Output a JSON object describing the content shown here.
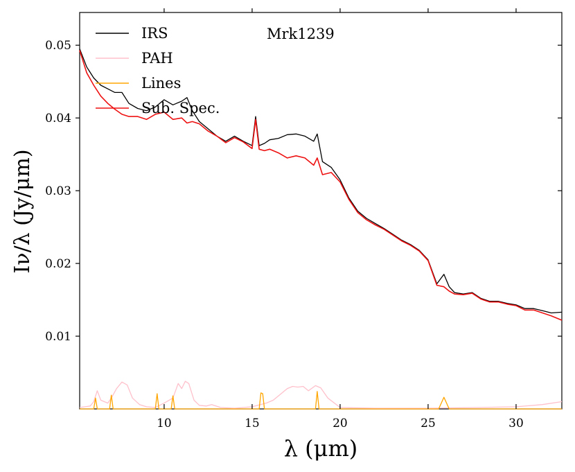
{
  "chart_data": {
    "type": "line",
    "title": "Mrk1239",
    "xlabel": "λ (μm)",
    "ylabel": "Iν/λ (Jy/μm)",
    "xlim": [
      5.2,
      32.6
    ],
    "ylim": [
      0.0,
      0.0545
    ],
    "xticks": [
      10,
      15,
      20,
      25,
      30
    ],
    "xtick_labels": [
      "10",
      "15",
      "20",
      "25",
      "30"
    ],
    "yticks": [
      0.01,
      0.02,
      0.03,
      0.04,
      0.05
    ],
    "ytick_labels": [
      "0.01",
      "0.02",
      "0.03",
      "0.04",
      "0.05"
    ],
    "legend_position": "top-left",
    "grid": false,
    "series": [
      {
        "name": "IRS",
        "color": "#000000",
        "x": [
          5.2,
          5.6,
          6.0,
          6.4,
          6.8,
          7.2,
          7.6,
          8.0,
          8.5,
          9.0,
          9.5,
          10.0,
          10.5,
          11.0,
          11.3,
          11.6,
          12.0,
          12.5,
          13.0,
          13.5,
          14.0,
          14.5,
          15.0,
          15.2,
          15.4,
          15.7,
          16.0,
          16.5,
          17.0,
          17.5,
          18.0,
          18.5,
          18.7,
          19.0,
          19.5,
          20.0,
          20.5,
          21.0,
          21.5,
          22.0,
          22.5,
          23.0,
          23.5,
          24.0,
          24.5,
          25.0,
          25.5,
          25.9,
          26.2,
          26.5,
          27.0,
          27.5,
          28.0,
          28.5,
          29.0,
          29.5,
          30.0,
          30.5,
          31.0,
          31.5,
          32.0,
          32.6
        ],
        "values": [
          0.0495,
          0.047,
          0.0455,
          0.0445,
          0.044,
          0.0435,
          0.0435,
          0.042,
          0.0413,
          0.041,
          0.0415,
          0.0425,
          0.0418,
          0.0423,
          0.0428,
          0.041,
          0.0395,
          0.0385,
          0.0375,
          0.0368,
          0.0375,
          0.0368,
          0.0362,
          0.0402,
          0.0362,
          0.0365,
          0.037,
          0.0372,
          0.0377,
          0.0378,
          0.0375,
          0.0368,
          0.0378,
          0.034,
          0.0332,
          0.0315,
          0.029,
          0.0272,
          0.0262,
          0.0255,
          0.0248,
          0.024,
          0.0232,
          0.0226,
          0.0218,
          0.0205,
          0.0172,
          0.0185,
          0.0168,
          0.016,
          0.0158,
          0.016,
          0.0152,
          0.0148,
          0.0148,
          0.0145,
          0.0143,
          0.0138,
          0.0138,
          0.0135,
          0.0132,
          0.0133
        ]
      },
      {
        "name": "PAH",
        "color": "#ffc0cb",
        "x": [
          5.2,
          5.8,
          6.0,
          6.2,
          6.4,
          6.8,
          7.0,
          7.3,
          7.6,
          7.9,
          8.2,
          8.6,
          9.0,
          9.5,
          10.0,
          10.5,
          10.8,
          11.0,
          11.2,
          11.4,
          11.7,
          12.0,
          12.4,
          12.7,
          13.2,
          14.0,
          15.0,
          15.8,
          16.2,
          16.5,
          17.0,
          17.3,
          17.6,
          17.9,
          18.2,
          18.6,
          18.9,
          19.3,
          20.0,
          22.0,
          25.0,
          28.0,
          30.0,
          31.5,
          32.6
        ],
        "values": [
          0.0002,
          0.0004,
          0.001,
          0.0025,
          0.0012,
          0.0008,
          0.0015,
          0.0028,
          0.0037,
          0.0033,
          0.0015,
          0.0006,
          0.0003,
          0.0002,
          0.0008,
          0.0015,
          0.0035,
          0.0028,
          0.0038,
          0.0035,
          0.0012,
          0.0005,
          0.0004,
          0.0006,
          0.0002,
          0.0001,
          0.0003,
          0.0008,
          0.0012,
          0.0018,
          0.0028,
          0.0031,
          0.003,
          0.0031,
          0.0025,
          0.0032,
          0.0029,
          0.0015,
          0.0002,
          0.0001,
          0.0001,
          0.0002,
          0.0003,
          0.0006,
          0.001
        ]
      },
      {
        "name": "Lines",
        "color": "#ffa500",
        "x": [
          5.2,
          6.0,
          6.1,
          6.2,
          6.3,
          6.9,
          7.0,
          7.1,
          9.5,
          9.6,
          9.7,
          10.4,
          10.5,
          10.6,
          15.4,
          15.5,
          15.6,
          15.7,
          18.6,
          18.7,
          18.8,
          25.6,
          25.9,
          26.2,
          32.6
        ],
        "values": [
          0.0,
          0.0,
          0.0015,
          0.0,
          0.0,
          0.0,
          0.0019,
          0.0,
          0.0,
          0.0021,
          0.0,
          0.0,
          0.0018,
          0.0,
          0.0,
          0.0022,
          0.0021,
          0.0,
          0.0,
          0.0024,
          0.0,
          0.0,
          0.0016,
          0.0,
          0.0
        ]
      },
      {
        "name": "Sub. Spec.",
        "color": "#ee1111",
        "x": [
          5.2,
          5.6,
          6.0,
          6.4,
          6.8,
          7.2,
          7.6,
          8.0,
          8.5,
          9.0,
          9.5,
          10.0,
          10.5,
          11.0,
          11.3,
          11.6,
          12.0,
          12.5,
          13.0,
          13.5,
          14.0,
          14.5,
          15.0,
          15.2,
          15.4,
          15.7,
          16.0,
          16.5,
          17.0,
          17.5,
          18.0,
          18.5,
          18.7,
          19.0,
          19.5,
          20.0,
          20.5,
          21.0,
          21.5,
          22.0,
          22.5,
          23.0,
          23.5,
          24.0,
          24.5,
          25.0,
          25.5,
          25.9,
          26.2,
          26.5,
          27.0,
          27.5,
          28.0,
          28.5,
          29.0,
          29.5,
          30.0,
          30.5,
          31.0,
          31.5,
          32.0,
          32.6
        ],
        "values": [
          0.0493,
          0.0462,
          0.0445,
          0.043,
          0.042,
          0.0412,
          0.0405,
          0.0402,
          0.0402,
          0.0398,
          0.0405,
          0.0408,
          0.0398,
          0.04,
          0.0393,
          0.0395,
          0.0392,
          0.0382,
          0.0375,
          0.0366,
          0.0373,
          0.0367,
          0.0358,
          0.0398,
          0.0357,
          0.0355,
          0.0357,
          0.0352,
          0.0345,
          0.0348,
          0.0345,
          0.0335,
          0.0345,
          0.0322,
          0.0325,
          0.0312,
          0.0288,
          0.027,
          0.026,
          0.0253,
          0.0247,
          0.0239,
          0.0231,
          0.0225,
          0.0217,
          0.0204,
          0.017,
          0.0168,
          0.0162,
          0.0158,
          0.0157,
          0.0159,
          0.0151,
          0.0147,
          0.0147,
          0.0144,
          0.0142,
          0.0136,
          0.0136,
          0.0132,
          0.0128,
          0.0122
        ]
      }
    ]
  }
}
